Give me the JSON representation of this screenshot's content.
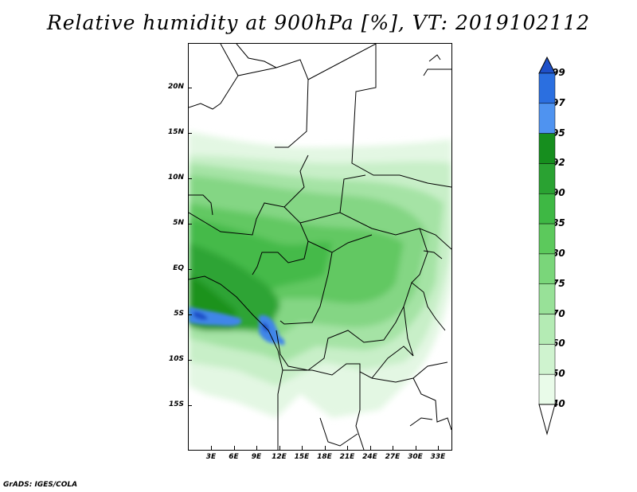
{
  "title": "Relative humidity at 900hPa [%], VT: 2019102112",
  "credit": "GrADS: IGES/COLA",
  "lat_labels": [
    "20N",
    "15N",
    "10N",
    "5N",
    "EQ",
    "5S",
    "10S",
    "15S"
  ],
  "lon_labels": [
    "3E",
    "6E",
    "9E",
    "12E",
    "15E",
    "18E",
    "21E",
    "24E",
    "27E",
    "30E",
    "33E"
  ],
  "colorbar": {
    "labels": [
      "99",
      "97",
      "95",
      "92",
      "90",
      "85",
      "80",
      "75",
      "70",
      "60",
      "50",
      "40"
    ],
    "colors": [
      "#1e50c8",
      "#2b6fe0",
      "#4f93f0",
      "#168e1e",
      "#2aa232",
      "#3eb844",
      "#5cc95c",
      "#7ad67a",
      "#98e198",
      "#b4ebb4",
      "#cff3cf",
      "#e9fbe9"
    ]
  }
}
